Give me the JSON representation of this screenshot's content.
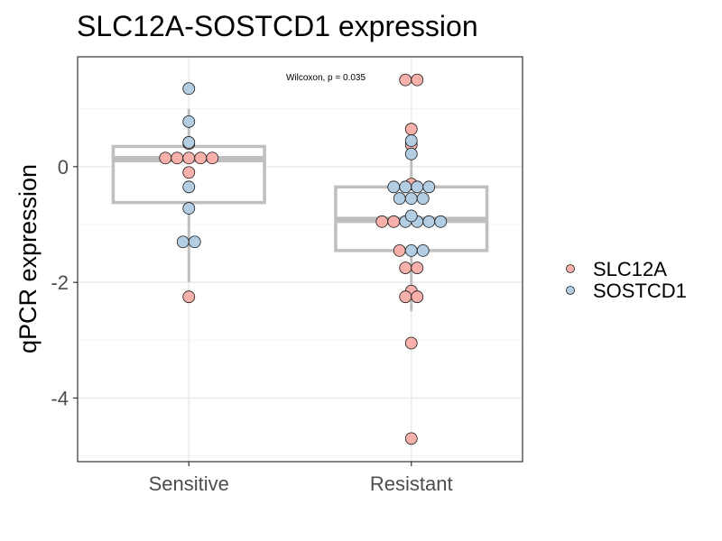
{
  "chart_data": {
    "type": "box-dotplot",
    "title": "SLC12A-SOSTCD1 expression",
    "xlabel": "",
    "ylabel": "qPCR expression",
    "annotation": "Wilcoxon, p = 0.035",
    "categories": [
      "Sensitive",
      "Resistant"
    ],
    "y_ticks": [
      0,
      -2,
      -4
    ],
    "ylim": [
      -5.1,
      1.9
    ],
    "grid": true,
    "legend_position": "right",
    "boxes": [
      {
        "category": "Sensitive",
        "whisker_low": -2.0,
        "q1": -0.62,
        "median": 0.13,
        "q3": 0.35,
        "whisker_high": 1.0
      },
      {
        "category": "Resistant",
        "whisker_low": -2.5,
        "q1": -1.45,
        "median": -0.92,
        "q3": -0.35,
        "whisker_high": 0.4
      }
    ],
    "series": [
      {
        "name": "SLC12A",
        "color": "#f8b0ab",
        "points": [
          {
            "x": "Sensitive",
            "y": 0.15
          },
          {
            "x": "Sensitive",
            "y": 0.15
          },
          {
            "x": "Sensitive",
            "y": 0.15
          },
          {
            "x": "Sensitive",
            "y": 0.15
          },
          {
            "x": "Sensitive",
            "y": 0.15
          },
          {
            "x": "Sensitive",
            "y": 0.4
          },
          {
            "x": "Sensitive",
            "y": -0.1
          },
          {
            "x": "Sensitive",
            "y": -2.25
          },
          {
            "x": "Resistant",
            "y": 1.5
          },
          {
            "x": "Resistant",
            "y": 1.5
          },
          {
            "x": "Resistant",
            "y": 0.65
          },
          {
            "x": "Resistant",
            "y": 0.38
          },
          {
            "x": "Resistant",
            "y": -0.3
          },
          {
            "x": "Resistant",
            "y": -0.95
          },
          {
            "x": "Resistant",
            "y": -0.95
          },
          {
            "x": "Resistant",
            "y": -1.45
          },
          {
            "x": "Resistant",
            "y": -1.75
          },
          {
            "x": "Resistant",
            "y": -1.75
          },
          {
            "x": "Resistant",
            "y": -2.15
          },
          {
            "x": "Resistant",
            "y": -2.25
          },
          {
            "x": "Resistant",
            "y": -2.25
          },
          {
            "x": "Resistant",
            "y": -3.05
          },
          {
            "x": "Resistant",
            "y": -4.7
          }
        ]
      },
      {
        "name": "SOSTCD1",
        "color": "#b3cde3",
        "points": [
          {
            "x": "Sensitive",
            "y": 1.35
          },
          {
            "x": "Sensitive",
            "y": 0.78
          },
          {
            "x": "Sensitive",
            "y": 0.42
          },
          {
            "x": "Sensitive",
            "y": -0.35
          },
          {
            "x": "Sensitive",
            "y": -0.72
          },
          {
            "x": "Sensitive",
            "y": -1.3
          },
          {
            "x": "Sensitive",
            "y": -1.3
          },
          {
            "x": "Resistant",
            "y": 0.45
          },
          {
            "x": "Resistant",
            "y": 0.22
          },
          {
            "x": "Resistant",
            "y": -0.35
          },
          {
            "x": "Resistant",
            "y": -0.35
          },
          {
            "x": "Resistant",
            "y": -0.35
          },
          {
            "x": "Resistant",
            "y": -0.35
          },
          {
            "x": "Resistant",
            "y": -0.55
          },
          {
            "x": "Resistant",
            "y": -0.55
          },
          {
            "x": "Resistant",
            "y": -0.55
          },
          {
            "x": "Resistant",
            "y": -0.85
          },
          {
            "x": "Resistant",
            "y": -0.95
          },
          {
            "x": "Resistant",
            "y": -0.95
          },
          {
            "x": "Resistant",
            "y": -0.95
          },
          {
            "x": "Resistant",
            "y": -0.95
          },
          {
            "x": "Resistant",
            "y": -1.45
          },
          {
            "x": "Resistant",
            "y": -1.45
          }
        ]
      }
    ]
  }
}
